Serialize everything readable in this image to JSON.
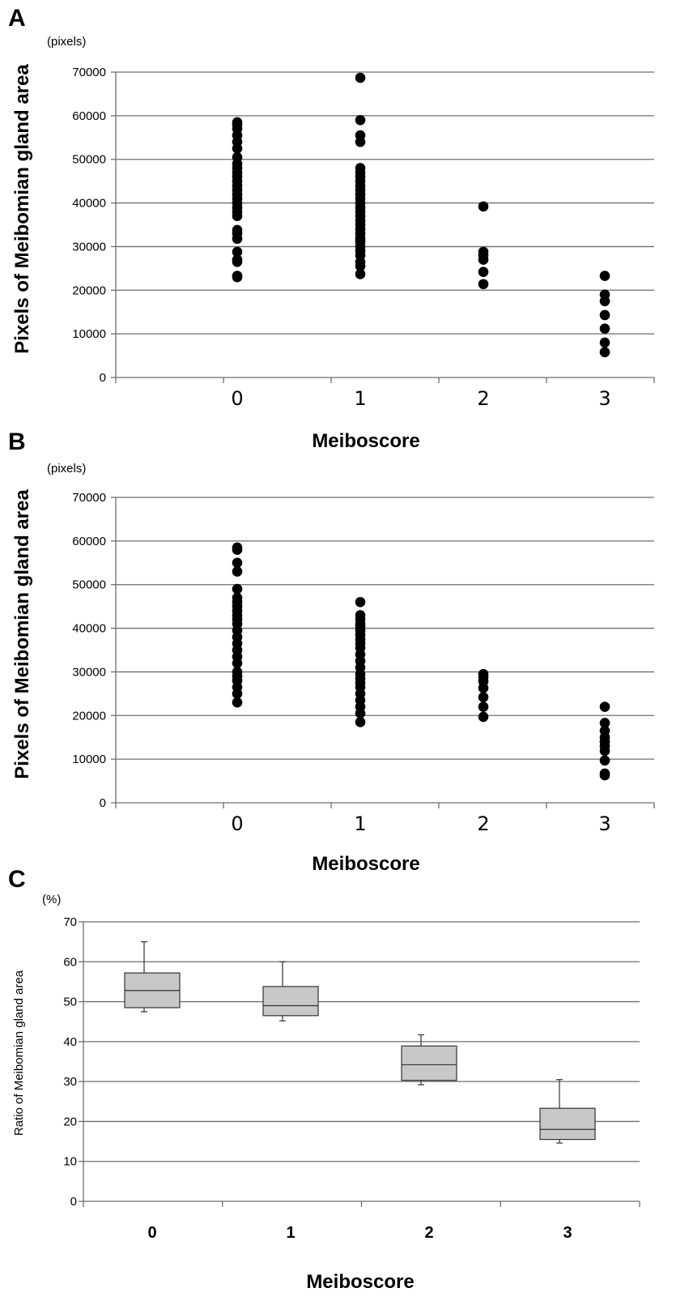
{
  "chart_data": [
    {
      "panel": "A",
      "type": "scatter",
      "unit_label": "(pixels)",
      "ylabel": "Pixels of Meibomian gland area",
      "xlabel": "Meiboscore",
      "categories": [
        "0",
        "1",
        "2",
        "3"
      ],
      "ylim": [
        0,
        70000
      ],
      "yticks": [
        "0",
        "10000",
        "20000",
        "30000",
        "40000",
        "50000",
        "60000",
        "70000"
      ],
      "grid": true,
      "points": [
        [
          23000,
          23300,
          26500,
          27000,
          28800,
          31800,
          33000,
          33800,
          37000,
          38000,
          39000,
          40000,
          41000,
          42000,
          43000,
          44000,
          45000,
          46000,
          47000,
          48000,
          49000,
          50500,
          52500,
          54000,
          55500,
          57000,
          58000,
          58500
        ],
        [
          23700,
          25500,
          26500,
          28000,
          29000,
          30000,
          31000,
          31500,
          32000,
          33000,
          34000,
          35000,
          36000,
          37000,
          38000,
          39000,
          40000,
          41000,
          42000,
          43000,
          44000,
          45000,
          46000,
          47000,
          48000,
          54000,
          55500,
          59000,
          68700
        ],
        [
          21400,
          24200,
          27000,
          28000,
          28800,
          39200
        ],
        [
          5800,
          8000,
          11200,
          14300,
          17500,
          19000,
          23300
        ]
      ]
    },
    {
      "panel": "B",
      "type": "scatter",
      "unit_label": "(pixels)",
      "ylabel": "Pixels of Meibomian gland area",
      "xlabel": "Meiboscore",
      "categories": [
        "0",
        "1",
        "2",
        "3"
      ],
      "ylim": [
        0,
        70000
      ],
      "yticks": [
        "0",
        "10000",
        "20000",
        "30000",
        "40000",
        "50000",
        "60000",
        "70000"
      ],
      "grid": true,
      "points": [
        [
          23000,
          25000,
          26500,
          28000,
          29000,
          30000,
          32000,
          33500,
          35000,
          36500,
          38000,
          39500,
          41000,
          42000,
          43000,
          44000,
          45000,
          46000,
          47000,
          49000,
          53000,
          55000,
          58000,
          58500
        ],
        [
          18500,
          20500,
          22000,
          23500,
          25000,
          26500,
          27500,
          28500,
          29500,
          31000,
          32500,
          34000,
          35500,
          36500,
          37500,
          38500,
          39500,
          40500,
          41000,
          42000,
          43000,
          46000
        ],
        [
          19700,
          22000,
          24200,
          26300,
          27800,
          28800,
          29500
        ],
        [
          6300,
          6700,
          9700,
          11900,
          13000,
          14000,
          15000,
          16500,
          18300,
          22000
        ]
      ]
    },
    {
      "panel": "C",
      "type": "box",
      "unit_label": "(%)",
      "ylabel": "Ratio of Meibomian gland area",
      "xlabel": "Meiboscore",
      "categories": [
        "0",
        "1",
        "2",
        "3"
      ],
      "ylim": [
        0,
        70
      ],
      "yticks": [
        "0",
        "10",
        "20",
        "30",
        "40",
        "50",
        "60",
        "70"
      ],
      "grid": true,
      "boxes": [
        {
          "min": 47.5,
          "q1": 48.5,
          "median": 52.8,
          "q3": 57.2,
          "max": 65.0
        },
        {
          "min": 45.2,
          "q1": 46.5,
          "median": 49.0,
          "q3": 53.8,
          "max": 60.0
        },
        {
          "min": 29.2,
          "q1": 30.3,
          "median": 34.2,
          "q3": 38.9,
          "max": 41.7
        },
        {
          "min": 14.6,
          "q1": 15.5,
          "median": 18.0,
          "q3": 23.3,
          "max": 30.5
        }
      ]
    }
  ]
}
